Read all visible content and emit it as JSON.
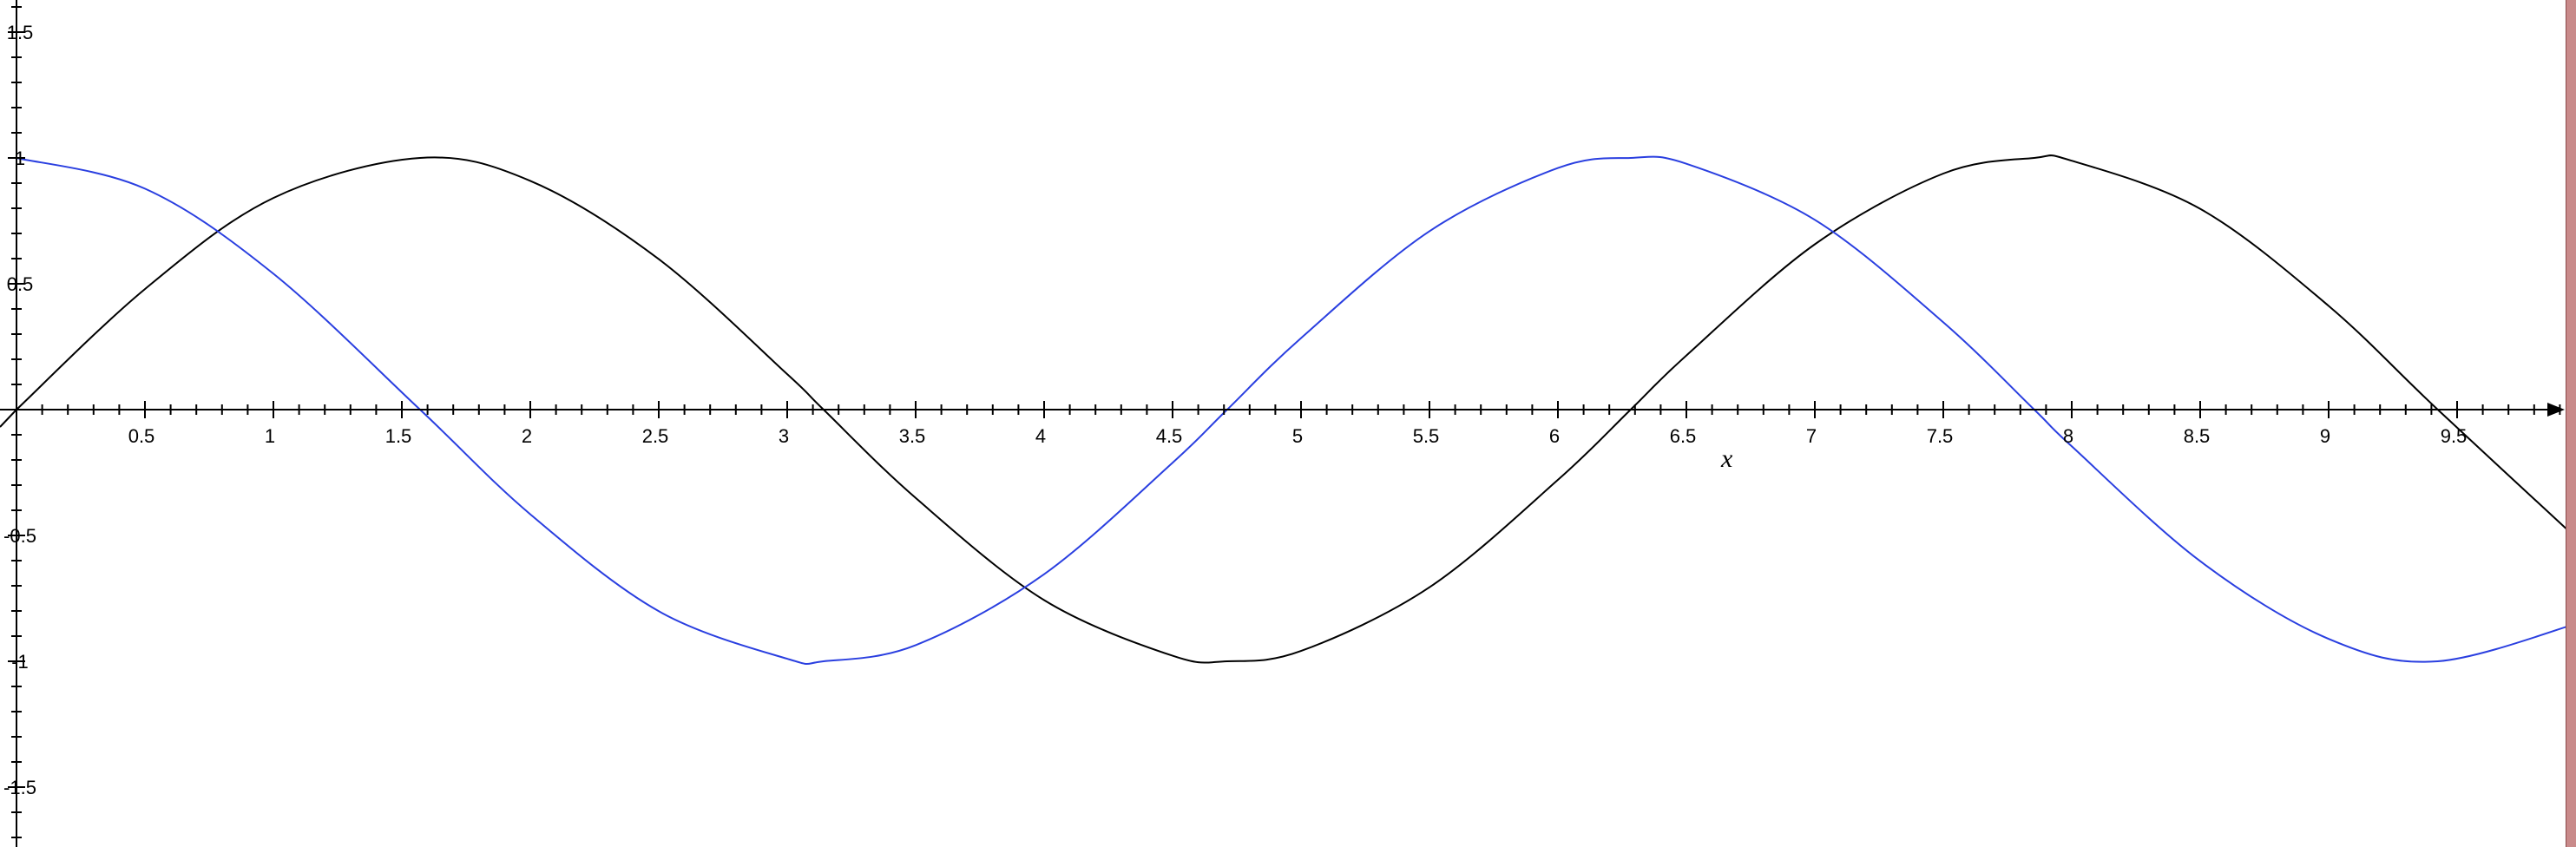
{
  "chart_data": {
    "type": "line",
    "title": "",
    "xlabel": "x",
    "ylabel": "",
    "xlim": [
      0,
      10
    ],
    "ylim": [
      -1.5,
      1.5
    ],
    "grid": false,
    "x_ticks": [
      0.5,
      1,
      1.5,
      2,
      2.5,
      3,
      3.5,
      4,
      4.5,
      5,
      5.5,
      6,
      6.5,
      7,
      7.5,
      8,
      8.5,
      9,
      9.5
    ],
    "x_tick_labels": [
      "0.5",
      "1",
      "1.5",
      "2",
      "2.5",
      "3",
      "3.5",
      "4",
      "4.5",
      "5",
      "5.5",
      "6",
      "6.5",
      "7",
      "7.5",
      "8",
      "8.5",
      "9",
      "9.5"
    ],
    "y_ticks": [
      1.5,
      1,
      0.5,
      -0.5,
      -1,
      -1.5
    ],
    "y_tick_labels": [
      "1.5",
      "1",
      "0.5",
      "-0.5",
      "-1",
      "-1.5"
    ],
    "series": [
      {
        "color": "#000000",
        "x": [
          0,
          0.5,
          1,
          1.5708,
          2,
          2.5,
          3,
          3.1416,
          3.5,
          4,
          4.5,
          4.7124,
          5,
          5.5,
          6,
          6.2832,
          6.5,
          7,
          7.5,
          7.854,
          8,
          8.5,
          9,
          9.4248,
          10
        ],
        "y": [
          0,
          0.479,
          0.841,
          1,
          0.909,
          0.598,
          0.141,
          0,
          -0.351,
          -0.757,
          -0.978,
          -1,
          -0.959,
          -0.706,
          -0.279,
          0,
          0.215,
          0.657,
          0.938,
          1,
          0.989,
          0.798,
          0.412,
          0,
          -0.544
        ]
      },
      {
        "color": "#2a3fe0",
        "x": [
          0,
          0.5,
          1,
          1.5708,
          2,
          2.5,
          3,
          3.1416,
          3.5,
          4,
          4.5,
          4.7124,
          5,
          5.5,
          6,
          6.2832,
          6.5,
          7,
          7.5,
          7.854,
          8,
          8.5,
          9,
          9.4248,
          10
        ],
        "y": [
          1,
          0.878,
          0.54,
          0,
          -0.416,
          -0.801,
          -0.99,
          -1,
          -0.936,
          -0.654,
          -0.211,
          0,
          0.284,
          0.709,
          0.96,
          1,
          0.977,
          0.754,
          0.347,
          0,
          -0.146,
          -0.602,
          -0.911,
          -1,
          -0.839
        ]
      }
    ]
  }
}
